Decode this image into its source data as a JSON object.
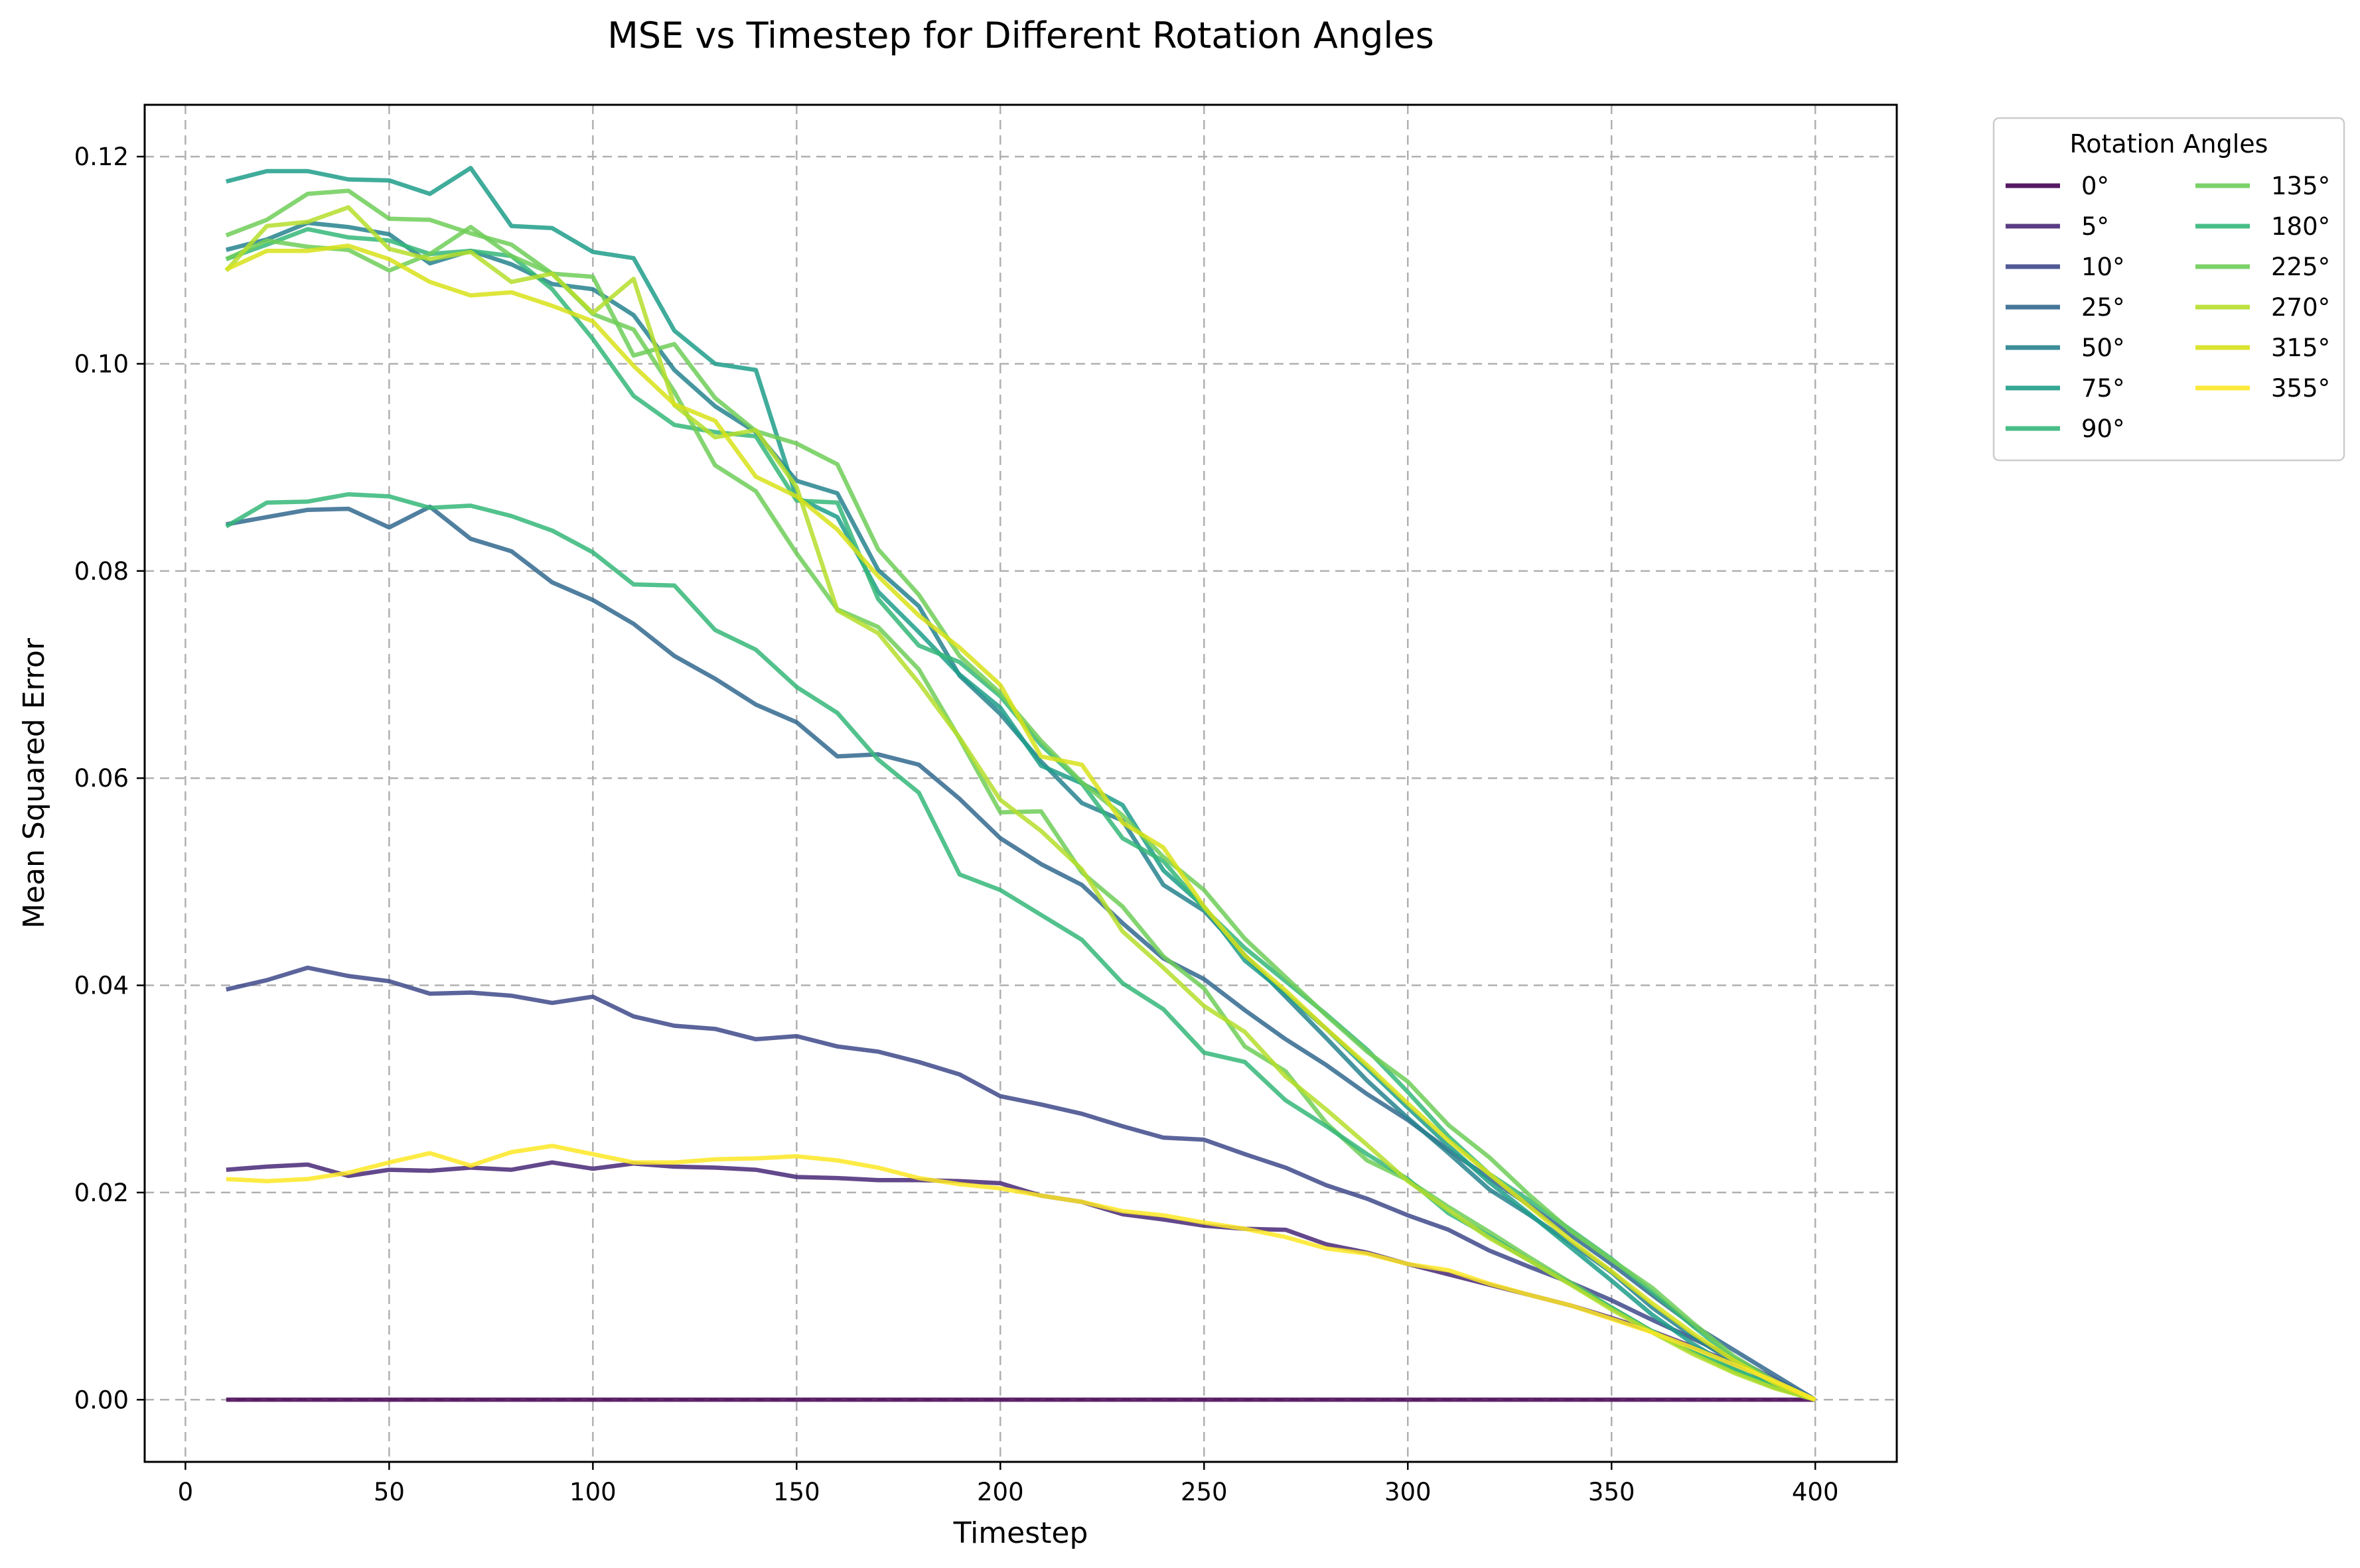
{
  "chart_data": {
    "type": "line",
    "title": "MSE vs Timestep for Different Rotation Angles",
    "xlabel": "Timestep",
    "ylabel": "Mean Squared Error",
    "xlim": [
      -10,
      420
    ],
    "ylim": [
      -0.006,
      0.125
    ],
    "x_ticks": [
      0,
      50,
      100,
      150,
      200,
      250,
      300,
      350,
      400
    ],
    "y_ticks": [
      0.0,
      0.02,
      0.04,
      0.06,
      0.08,
      0.1,
      0.12
    ],
    "x_tick_labels": [
      "0",
      "50",
      "100",
      "150",
      "200",
      "250",
      "300",
      "350",
      "400"
    ],
    "y_tick_labels": [
      "0.00",
      "0.02",
      "0.04",
      "0.06",
      "0.08",
      "0.10",
      "0.12"
    ],
    "grid": true,
    "legend": {
      "title": "Rotation Angles",
      "placement": "outside-top-right",
      "columns": 2
    },
    "x": [
      10,
      20,
      30,
      40,
      50,
      60,
      70,
      80,
      90,
      100,
      110,
      120,
      130,
      140,
      150,
      160,
      170,
      180,
      190,
      200,
      210,
      220,
      230,
      240,
      250,
      260,
      270,
      280,
      290,
      300,
      310,
      320,
      330,
      340,
      350,
      360,
      370,
      380,
      390,
      400
    ],
    "series": [
      {
        "name": "0°",
        "color": "#440154",
        "values": [
          0,
          0,
          0,
          0,
          0,
          0,
          0,
          0,
          0,
          0,
          0,
          0,
          0,
          0,
          0,
          0,
          0,
          0,
          0,
          0,
          0,
          0,
          0,
          0,
          0,
          0,
          0,
          0,
          0,
          0,
          0,
          0,
          0,
          0,
          0,
          0,
          0,
          0,
          0,
          0
        ]
      },
      {
        "name": "5°",
        "color": "#482878",
        "values": [
          0.0222,
          0.0225,
          0.0227,
          0.0216,
          0.0222,
          0.0221,
          0.0224,
          0.0222,
          0.0229,
          0.0223,
          0.0228,
          0.0225,
          0.0224,
          0.0222,
          0.0215,
          0.0214,
          0.0212,
          0.0212,
          0.0211,
          0.0209,
          0.0197,
          0.0191,
          0.0179,
          0.0174,
          0.0168,
          0.0165,
          0.0164,
          0.015,
          0.0142,
          0.0131,
          0.0121,
          0.0111,
          0.0101,
          0.0091,
          0.0079,
          0.0066,
          0.0051,
          0.0035,
          0.0018,
          0.0
        ]
      },
      {
        "name": "10°",
        "color": "#3e4989",
        "values": [
          0.0396,
          0.0405,
          0.0417,
          0.0409,
          0.0404,
          0.0392,
          0.0393,
          0.039,
          0.0383,
          0.0389,
          0.037,
          0.0361,
          0.0358,
          0.0348,
          0.0351,
          0.0341,
          0.0336,
          0.0326,
          0.0314,
          0.0293,
          0.0285,
          0.0276,
          0.0264,
          0.0253,
          0.0251,
          0.0237,
          0.0224,
          0.0207,
          0.0194,
          0.0178,
          0.0164,
          0.0144,
          0.0128,
          0.0113,
          0.0096,
          0.0077,
          0.0059,
          0.004,
          0.002,
          0.0
        ]
      },
      {
        "name": "25°",
        "color": "#31688e",
        "values": [
          0.0845,
          0.0852,
          0.0859,
          0.086,
          0.0842,
          0.0862,
          0.0831,
          0.0819,
          0.0789,
          0.0772,
          0.0749,
          0.0718,
          0.0696,
          0.0671,
          0.0654,
          0.0621,
          0.0623,
          0.0613,
          0.058,
          0.0542,
          0.0517,
          0.0497,
          0.046,
          0.0426,
          0.0406,
          0.0376,
          0.0348,
          0.0323,
          0.0295,
          0.027,
          0.0241,
          0.0214,
          0.0187,
          0.0159,
          0.0131,
          0.0101,
          0.0072,
          0.0048,
          0.0024,
          0.0
        ]
      },
      {
        "name": "50°",
        "color": "#26828e",
        "values": [
          0.111,
          0.112,
          0.1136,
          0.1132,
          0.1125,
          0.1097,
          0.1109,
          0.1096,
          0.1077,
          0.1072,
          0.1047,
          0.0994,
          0.0959,
          0.0934,
          0.0887,
          0.0875,
          0.0801,
          0.0766,
          0.0699,
          0.0662,
          0.0616,
          0.0576,
          0.0559,
          0.0497,
          0.0472,
          0.0429,
          0.0389,
          0.0349,
          0.0308,
          0.0272,
          0.0238,
          0.0203,
          0.0178,
          0.0151,
          0.0123,
          0.0089,
          0.0061,
          0.0036,
          0.0015,
          0.0
        ]
      },
      {
        "name": "75°",
        "color": "#1f9e89",
        "values": [
          0.1176,
          0.1186,
          0.1186,
          0.1178,
          0.1177,
          0.1164,
          0.1189,
          0.1133,
          0.1131,
          0.1108,
          0.1102,
          0.1032,
          0.1,
          0.0994,
          0.0871,
          0.0852,
          0.078,
          0.0741,
          0.07,
          0.0668,
          0.0612,
          0.0595,
          0.0574,
          0.0511,
          0.0476,
          0.0424,
          0.0392,
          0.0358,
          0.032,
          0.0282,
          0.0245,
          0.021,
          0.0179,
          0.0147,
          0.0115,
          0.0082,
          0.0054,
          0.003,
          0.0012,
          0.0
        ]
      },
      {
        "name": "90°",
        "color": "#35b779",
        "values": [
          0.1101,
          0.1115,
          0.113,
          0.1122,
          0.1119,
          0.1106,
          0.1109,
          0.1104,
          0.1072,
          0.1024,
          0.0969,
          0.0941,
          0.0934,
          0.093,
          0.0868,
          0.0866,
          0.0773,
          0.0728,
          0.0712,
          0.0679,
          0.0632,
          0.0595,
          0.0542,
          0.052,
          0.0474,
          0.0436,
          0.0404,
          0.0372,
          0.0338,
          0.0297,
          0.0254,
          0.0218,
          0.0192,
          0.0164,
          0.0136,
          0.0104,
          0.0071,
          0.004,
          0.0016,
          0.0
        ]
      },
      {
        "name": "135°",
        "color": "#6ece58",
        "values": [
          0.1101,
          0.1119,
          0.1113,
          0.111,
          0.109,
          0.1106,
          0.1132,
          0.1104,
          0.1087,
          0.1048,
          0.1033,
          0.0973,
          0.0902,
          0.0877,
          0.0817,
          0.0763,
          0.0746,
          0.0705,
          0.0638,
          0.0567,
          0.0568,
          0.0509,
          0.0476,
          0.0428,
          0.0397,
          0.0341,
          0.0317,
          0.0267,
          0.0231,
          0.0212,
          0.0186,
          0.0162,
          0.0137,
          0.0113,
          0.0089,
          0.0066,
          0.0046,
          0.0027,
          0.0012,
          0.0
        ]
      },
      {
        "name": "180°",
        "color": "#35b779",
        "values": [
          0.0843,
          0.0866,
          0.0867,
          0.0874,
          0.0872,
          0.0861,
          0.0863,
          0.0853,
          0.0839,
          0.0818,
          0.0787,
          0.0786,
          0.0743,
          0.0724,
          0.0688,
          0.0663,
          0.0618,
          0.0586,
          0.0507,
          0.0492,
          0.0468,
          0.0444,
          0.0402,
          0.0377,
          0.0335,
          0.0326,
          0.0289,
          0.0264,
          0.0237,
          0.0213,
          0.018,
          0.0158,
          0.0134,
          0.0112,
          0.0089,
          0.0066,
          0.0046,
          0.0029,
          0.0013,
          0.0
        ]
      },
      {
        "name": "225°",
        "color": "#6ece58",
        "values": [
          0.1124,
          0.1139,
          0.1164,
          0.1167,
          0.114,
          0.1139,
          0.1126,
          0.1115,
          0.1087,
          0.1084,
          0.1008,
          0.1019,
          0.0967,
          0.0935,
          0.0923,
          0.0903,
          0.0821,
          0.0777,
          0.0718,
          0.0682,
          0.0636,
          0.0596,
          0.0564,
          0.0524,
          0.0492,
          0.0445,
          0.0408,
          0.0371,
          0.0336,
          0.0307,
          0.0265,
          0.0234,
          0.0197,
          0.0163,
          0.0135,
          0.0108,
          0.0074,
          0.0042,
          0.0018,
          0.0
        ]
      },
      {
        "name": "270°",
        "color": "#b5de2b",
        "values": [
          0.109,
          0.1133,
          0.1137,
          0.1151,
          0.1111,
          0.1101,
          0.1108,
          0.1079,
          0.1087,
          0.1049,
          0.1082,
          0.096,
          0.0929,
          0.0936,
          0.0881,
          0.0762,
          0.074,
          0.0692,
          0.0639,
          0.0579,
          0.0549,
          0.0512,
          0.0452,
          0.0417,
          0.038,
          0.0355,
          0.0312,
          0.028,
          0.0246,
          0.0211,
          0.0183,
          0.0156,
          0.0134,
          0.0111,
          0.0087,
          0.0065,
          0.0044,
          0.0026,
          0.0011,
          0.0
        ]
      },
      {
        "name": "315°",
        "color": "#d8e219",
        "values": [
          0.1091,
          0.1109,
          0.1109,
          0.1114,
          0.1101,
          0.1079,
          0.1066,
          0.1069,
          0.1056,
          0.1041,
          0.0998,
          0.0961,
          0.0945,
          0.0891,
          0.0872,
          0.084,
          0.0795,
          0.0757,
          0.0726,
          0.069,
          0.0621,
          0.0613,
          0.0557,
          0.0533,
          0.0476,
          0.0429,
          0.0395,
          0.0358,
          0.0323,
          0.0286,
          0.025,
          0.0218,
          0.0186,
          0.0154,
          0.0124,
          0.0093,
          0.0064,
          0.0038,
          0.0016,
          0.0
        ]
      },
      {
        "name": "355°",
        "color": "#fde725",
        "values": [
          0.0213,
          0.0211,
          0.0213,
          0.0219,
          0.0229,
          0.0238,
          0.0226,
          0.0239,
          0.0245,
          0.0237,
          0.0229,
          0.0229,
          0.0232,
          0.0233,
          0.0235,
          0.0231,
          0.0224,
          0.0214,
          0.0208,
          0.0204,
          0.0197,
          0.0191,
          0.0182,
          0.0178,
          0.0171,
          0.0165,
          0.0157,
          0.0146,
          0.0141,
          0.0131,
          0.0125,
          0.0112,
          0.0101,
          0.0091,
          0.0078,
          0.0065,
          0.005,
          0.0034,
          0.0018,
          0.0
        ]
      }
    ]
  }
}
